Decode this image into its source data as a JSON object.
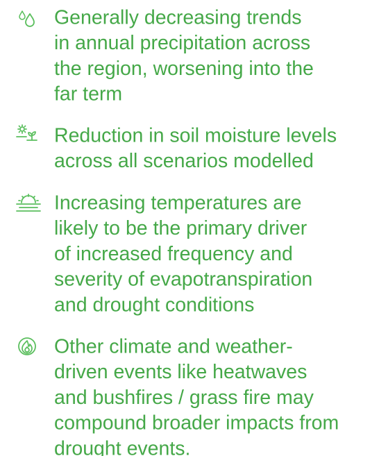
{
  "items": [
    {
      "lines": [
        "Generally decreasing trends",
        "in annual precipitation across",
        "the region, worsening into the",
        "far term"
      ]
    },
    {
      "lines": [
        "Reduction in soil moisture levels",
        "across all scenarios modelled"
      ]
    },
    {
      "lines": [
        "Increasing temperatures are",
        "likely to be the primary driver",
        "of increased frequency and",
        "severity of evapotranspiration",
        "and drought conditions"
      ]
    },
    {
      "lines": [
        "Other climate and weather-",
        "driven events like heatwaves",
        "and bushfires / grass fire may",
        "compound broader impacts from",
        "drought events."
      ]
    }
  ]
}
